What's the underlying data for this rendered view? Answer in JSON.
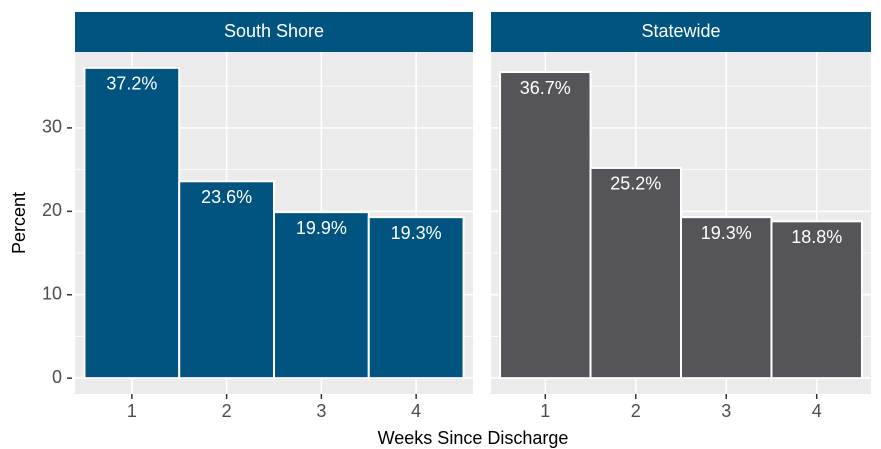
{
  "chart_data": {
    "type": "bar",
    "ylabel": "Percent",
    "xlabel": "Weeks Since Discharge",
    "ylim": [
      -1.9,
      39.1
    ],
    "yticks": [
      0,
      10,
      20,
      30
    ],
    "minor_yticks": [
      5,
      15,
      25,
      35
    ],
    "grid": true,
    "facets": [
      {
        "title": "South Shore",
        "color": "#00547f",
        "categories": [
          "1",
          "2",
          "3",
          "4"
        ],
        "values": [
          37.2,
          23.6,
          19.9,
          19.3
        ],
        "value_labels": [
          "37.2%",
          "23.6%",
          "19.9%",
          "19.3%"
        ]
      },
      {
        "title": "Statewide",
        "color": "#555559",
        "categories": [
          "1",
          "2",
          "3",
          "4"
        ],
        "values": [
          36.7,
          25.2,
          19.3,
          18.8
        ],
        "value_labels": [
          "36.7%",
          "25.2%",
          "19.3%",
          "18.8%"
        ]
      }
    ]
  }
}
